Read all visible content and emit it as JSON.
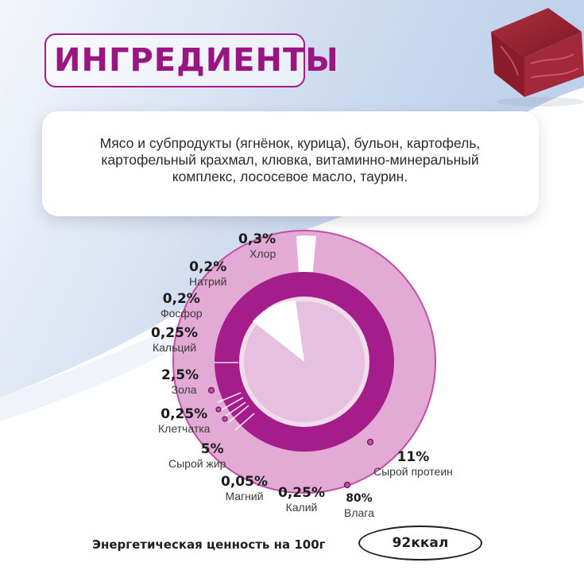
{
  "header": {
    "title": "ИНГРЕДИЕНТЫ"
  },
  "ingredients": {
    "lines": [
      "Мясо и субпродукты (ягнёнок, курица), бульон, картофель,",
      "картофельный крахмал, клювка, витаминно-минеральный",
      "комплекс, лососевое масло, таурин."
    ]
  },
  "composition": [
    {
      "percent": "0,3%",
      "name": "Хлор"
    },
    {
      "percent": "0,2%",
      "name": "Натрий"
    },
    {
      "percent": "0,2%",
      "name": "Фосфор"
    },
    {
      "percent": "0,25%",
      "name": "Кальций"
    },
    {
      "percent": "2,5%",
      "name": "Зола"
    },
    {
      "percent": "0,25%",
      "name": "Клетчатка"
    },
    {
      "percent": "5%",
      "name": "Сырой жир"
    },
    {
      "percent": "0,05%",
      "name": "Магний"
    },
    {
      "percent": "0,25%",
      "name": "Калий"
    },
    {
      "percent": "80%",
      "name": "Влага"
    },
    {
      "percent": "11%",
      "name": "Сырой протеин"
    }
  ],
  "energy": {
    "label": "Энергетическая ценность на 100г",
    "value": "92ккал"
  },
  "colors": {
    "accent": "#a51a8a",
    "ring_dark": "#a51d8a",
    "ring_light": "#e2aad4",
    "sky": "#c7d7ee"
  },
  "icons": {
    "meat": "meat-cube-illustration"
  }
}
